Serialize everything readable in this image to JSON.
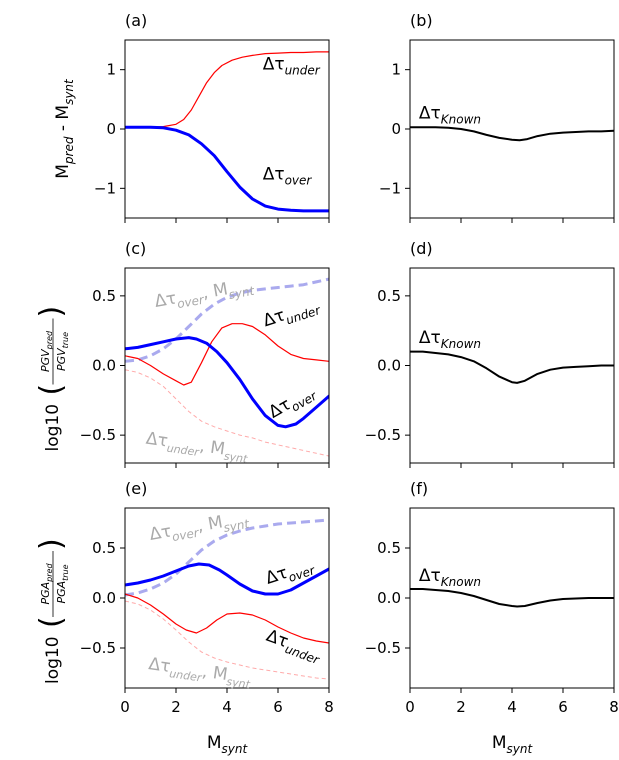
{
  "chart_data": [
    {
      "type": "line",
      "panel": "(a)",
      "ylabel": [
        "M",
        "pred",
        " - M",
        "synt"
      ],
      "xlim": [
        0,
        8
      ],
      "ylim": [
        -1.5,
        1.5
      ],
      "yticks": [
        1,
        0,
        -1
      ],
      "ytick_labels": [
        "1",
        "0",
        "−1"
      ],
      "xticks": [
        0,
        2,
        4,
        6,
        8
      ],
      "series": [
        {
          "name": "Δτunder",
          "color": "#ff0000",
          "width": 1.2,
          "dash": "",
          "label_color": "#000000",
          "x": [
            0,
            0.5,
            1,
            1.5,
            2,
            2.3,
            2.6,
            2.9,
            3.2,
            3.5,
            3.8,
            4.2,
            4.6,
            5,
            5.5,
            6,
            6.5,
            7,
            7.5,
            8
          ],
          "y": [
            0.03,
            0.03,
            0.03,
            0.04,
            0.08,
            0.16,
            0.32,
            0.55,
            0.78,
            0.95,
            1.07,
            1.16,
            1.21,
            1.24,
            1.27,
            1.28,
            1.29,
            1.29,
            1.3,
            1.3
          ]
        },
        {
          "name": "Δτover",
          "color": "#0000ff",
          "width": 3,
          "dash": "",
          "label_color": "#000000",
          "x": [
            0,
            0.5,
            1,
            1.5,
            2,
            2.5,
            3,
            3.5,
            4,
            4.5,
            5,
            5.5,
            6,
            6.5,
            7,
            7.5,
            8
          ],
          "y": [
            0.03,
            0.03,
            0.03,
            0.02,
            -0.02,
            -0.1,
            -0.25,
            -0.45,
            -0.72,
            -0.98,
            -1.18,
            -1.3,
            -1.35,
            -1.37,
            -1.38,
            -1.38,
            -1.38
          ]
        }
      ],
      "annotations": [
        {
          "text": "Δτ",
          "sub": "under",
          "x": 5.4,
          "y": 1.0,
          "color": "#000000",
          "rotate": 0,
          "size": 17
        },
        {
          "text": "Δτ",
          "sub": "over",
          "x": 5.4,
          "y": -0.85,
          "color": "#000000",
          "rotate": 0,
          "size": 17
        }
      ]
    },
    {
      "type": "line",
      "panel": "(b)",
      "xlim": [
        0,
        8
      ],
      "ylim": [
        -1.5,
        1.5
      ],
      "yticks": [
        1,
        0,
        -1
      ],
      "ytick_labels": [
        "1",
        "0",
        "−1"
      ],
      "xticks": [
        0,
        2,
        4,
        6,
        8
      ],
      "series": [
        {
          "name": "ΔτKnown",
          "color": "#000000",
          "width": 2,
          "dash": "",
          "x": [
            0,
            0.5,
            1,
            1.5,
            2,
            2.5,
            3,
            3.5,
            4,
            4.3,
            4.6,
            5,
            5.5,
            6,
            6.5,
            7,
            7.5,
            8
          ],
          "y": [
            0.03,
            0.03,
            0.03,
            0.02,
            0.0,
            -0.04,
            -0.1,
            -0.15,
            -0.18,
            -0.19,
            -0.17,
            -0.12,
            -0.08,
            -0.06,
            -0.05,
            -0.04,
            -0.04,
            -0.03
          ]
        }
      ],
      "annotations": [
        {
          "text": "Δτ",
          "sub": "Known",
          "x": 0.35,
          "y": 0.18,
          "color": "#000000",
          "rotate": 0,
          "size": 17
        }
      ]
    },
    {
      "type": "line",
      "panel": "(c)",
      "ylabel": [
        "log10",
        "PGV",
        "pred",
        "PGV",
        "true"
      ],
      "xlim": [
        0,
        8
      ],
      "ylim": [
        -0.7,
        0.7
      ],
      "yticks": [
        0.5,
        0.0,
        -0.5
      ],
      "ytick_labels": [
        "0.5",
        "0.0",
        "−0.5"
      ],
      "xticks": [
        0,
        2,
        4,
        6,
        8
      ],
      "series": [
        {
          "name": "Δτover, Msynt",
          "color": "#aaaaee",
          "width": 3,
          "dash": "9,5",
          "x": [
            0,
            0.5,
            1,
            1.5,
            2,
            2.5,
            3,
            3.5,
            4,
            4.5,
            5,
            5.5,
            6,
            6.5,
            7,
            7.5,
            8
          ],
          "y": [
            0.03,
            0.04,
            0.07,
            0.12,
            0.19,
            0.28,
            0.37,
            0.44,
            0.49,
            0.52,
            0.54,
            0.55,
            0.56,
            0.57,
            0.58,
            0.6,
            0.62
          ]
        },
        {
          "name": "Δτunder, Msynt",
          "color": "#ffaaaa",
          "width": 1,
          "dash": "4,3",
          "x": [
            0,
            0.5,
            1,
            1.5,
            2,
            2.5,
            3,
            3.5,
            4,
            4.5,
            5,
            5.5,
            6,
            6.5,
            7,
            7.5,
            8
          ],
          "y": [
            -0.03,
            -0.05,
            -0.09,
            -0.15,
            -0.24,
            -0.33,
            -0.4,
            -0.44,
            -0.47,
            -0.5,
            -0.52,
            -0.55,
            -0.57,
            -0.59,
            -0.61,
            -0.63,
            -0.65
          ]
        },
        {
          "name": "Δτunder",
          "color": "#ff0000",
          "width": 1.2,
          "dash": "",
          "x": [
            0,
            0.5,
            1,
            1.5,
            2,
            2.3,
            2.6,
            3,
            3.4,
            3.8,
            4.2,
            4.6,
            5,
            5.5,
            6,
            6.5,
            7,
            7.5,
            8
          ],
          "y": [
            0.07,
            0.05,
            0.0,
            -0.06,
            -0.11,
            -0.14,
            -0.12,
            0.02,
            0.17,
            0.27,
            0.3,
            0.3,
            0.28,
            0.22,
            0.14,
            0.08,
            0.05,
            0.04,
            0.03
          ]
        },
        {
          "name": "Δτover",
          "color": "#0000ff",
          "width": 3,
          "dash": "",
          "x": [
            0,
            0.5,
            1,
            1.5,
            2,
            2.5,
            2.8,
            3.2,
            3.6,
            4,
            4.5,
            5,
            5.5,
            6,
            6.3,
            6.7,
            7,
            7.5,
            8
          ],
          "y": [
            0.12,
            0.13,
            0.15,
            0.17,
            0.19,
            0.2,
            0.19,
            0.16,
            0.1,
            0.02,
            -0.1,
            -0.24,
            -0.36,
            -0.43,
            -0.44,
            -0.42,
            -0.38,
            -0.3,
            -0.22
          ]
        }
      ],
      "annotations": [
        {
          "text": "Δτ",
          "sub": "over",
          "text2": ", M",
          "sub2": "synt",
          "x": 1.2,
          "y": 0.42,
          "color": "#aaaaaa",
          "rotate": -10,
          "size": 17
        },
        {
          "text": "Δτ",
          "sub": "under",
          "x": 5.5,
          "y": 0.28,
          "color": "#000000",
          "rotate": -18,
          "size": 17
        },
        {
          "text": "Δτ",
          "sub": "over",
          "x": 5.8,
          "y": -0.38,
          "color": "#000000",
          "rotate": -30,
          "size": 17
        },
        {
          "text": "Δτ",
          "sub": "under",
          "text2": ", M",
          "sub2": "synt",
          "x": 0.8,
          "y": -0.56,
          "color": "#aaaaaa",
          "rotate": 8,
          "size": 15
        }
      ]
    },
    {
      "type": "line",
      "panel": "(d)",
      "xlim": [
        0,
        8
      ],
      "ylim": [
        -0.7,
        0.7
      ],
      "yticks": [
        0.5,
        0.0,
        -0.5
      ],
      "ytick_labels": [
        "0.5",
        "0.0",
        "−0.5"
      ],
      "xticks": [
        0,
        2,
        4,
        6,
        8
      ],
      "series": [
        {
          "name": "ΔτKnown",
          "color": "#000000",
          "width": 2,
          "dash": "",
          "x": [
            0,
            0.5,
            1,
            1.5,
            2,
            2.5,
            3,
            3.5,
            4,
            4.2,
            4.5,
            5,
            5.5,
            6,
            6.5,
            7,
            7.5,
            8
          ],
          "y": [
            0.1,
            0.1,
            0.09,
            0.08,
            0.06,
            0.03,
            -0.02,
            -0.08,
            -0.12,
            -0.125,
            -0.11,
            -0.06,
            -0.03,
            -0.015,
            -0.01,
            -0.005,
            0.0,
            0.0
          ]
        }
      ],
      "annotations": [
        {
          "text": "Δτ",
          "sub": "Known",
          "x": 0.35,
          "y": 0.16,
          "color": "#000000",
          "rotate": 0,
          "size": 17
        }
      ]
    },
    {
      "type": "line",
      "panel": "(e)",
      "ylabel": [
        "log10",
        "PGA",
        "pred",
        "PGA",
        "true"
      ],
      "xlim": [
        0,
        8
      ],
      "ylim": [
        -0.9,
        0.9
      ],
      "yticks": [
        0.5,
        0.0,
        -0.5
      ],
      "ytick_labels": [
        "0.5",
        "0.0",
        "−0.5"
      ],
      "xticks": [
        0,
        2,
        4,
        6,
        8
      ],
      "xlabel": [
        "M",
        "synt"
      ],
      "series": [
        {
          "name": "Δτover, Msynt",
          "color": "#aaaaee",
          "width": 3,
          "dash": "9,5",
          "x": [
            0,
            0.5,
            1,
            1.5,
            2,
            2.5,
            3,
            3.5,
            4,
            4.5,
            5,
            5.5,
            6,
            6.5,
            7,
            7.5,
            8
          ],
          "y": [
            0.03,
            0.05,
            0.09,
            0.15,
            0.24,
            0.36,
            0.48,
            0.57,
            0.63,
            0.67,
            0.7,
            0.72,
            0.74,
            0.75,
            0.76,
            0.77,
            0.78
          ]
        },
        {
          "name": "Δτunder, Msynt",
          "color": "#ffaaaa",
          "width": 1,
          "dash": "4,3",
          "x": [
            0,
            0.5,
            1,
            1.5,
            2,
            2.5,
            3,
            3.5,
            4,
            4.5,
            5,
            5.5,
            6,
            6.5,
            7,
            7.5,
            8
          ],
          "y": [
            -0.03,
            -0.06,
            -0.12,
            -0.21,
            -0.32,
            -0.44,
            -0.54,
            -0.6,
            -0.64,
            -0.67,
            -0.7,
            -0.72,
            -0.74,
            -0.76,
            -0.78,
            -0.8,
            -0.81
          ]
        },
        {
          "name": "Δτunder",
          "color": "#ff0000",
          "width": 1.2,
          "dash": "",
          "x": [
            0,
            0.5,
            1,
            1.5,
            2,
            2.4,
            2.8,
            3.2,
            3.6,
            4,
            4.5,
            5,
            5.5,
            6,
            6.5,
            7,
            7.5,
            8
          ],
          "y": [
            0.04,
            0.0,
            -0.07,
            -0.16,
            -0.26,
            -0.32,
            -0.35,
            -0.3,
            -0.22,
            -0.16,
            -0.15,
            -0.17,
            -0.22,
            -0.29,
            -0.35,
            -0.4,
            -0.43,
            -0.45
          ]
        },
        {
          "name": "Δτover",
          "color": "#0000ff",
          "width": 3,
          "dash": "",
          "x": [
            0,
            0.5,
            1,
            1.5,
            2,
            2.5,
            2.9,
            3.3,
            3.7,
            4,
            4.5,
            5,
            5.5,
            6,
            6.5,
            7,
            7.5,
            8
          ],
          "y": [
            0.13,
            0.15,
            0.18,
            0.22,
            0.27,
            0.32,
            0.34,
            0.33,
            0.28,
            0.23,
            0.14,
            0.07,
            0.04,
            0.04,
            0.08,
            0.15,
            0.22,
            0.29
          ]
        }
      ],
      "annotations": [
        {
          "text": "Δτ",
          "sub": "over",
          "text2": ", M",
          "sub2": "synt",
          "x": 1.0,
          "y": 0.58,
          "color": "#aaaaaa",
          "rotate": -10,
          "size": 17
        },
        {
          "text": "Δτ",
          "sub": "over",
          "x": 5.6,
          "y": 0.14,
          "color": "#000000",
          "rotate": -18,
          "size": 17
        },
        {
          "text": "Δτ",
          "sub": "under",
          "x": 5.5,
          "y": -0.42,
          "color": "#000000",
          "rotate": 20,
          "size": 17
        },
        {
          "text": "Δτ",
          "sub": "under",
          "text2": ", M",
          "sub2": "synt",
          "x": 0.9,
          "y": -0.71,
          "color": "#aaaaaa",
          "rotate": 8,
          "size": 15
        }
      ]
    },
    {
      "type": "line",
      "panel": "(f)",
      "xlim": [
        0,
        8
      ],
      "ylim": [
        -0.9,
        0.9
      ],
      "yticks": [
        0.5,
        0.0,
        -0.5
      ],
      "ytick_labels": [
        "0.5",
        "0.0",
        "−0.5"
      ],
      "xticks": [
        0,
        2,
        4,
        6,
        8
      ],
      "xlabel": [
        "M",
        "synt"
      ],
      "series": [
        {
          "name": "ΔτKnown",
          "color": "#000000",
          "width": 2,
          "dash": "",
          "x": [
            0,
            0.5,
            1,
            1.5,
            2,
            2.5,
            3,
            3.5,
            4,
            4.2,
            4.5,
            5,
            5.5,
            6,
            6.5,
            7,
            7.5,
            8
          ],
          "y": [
            0.09,
            0.09,
            0.08,
            0.07,
            0.05,
            0.02,
            -0.02,
            -0.06,
            -0.08,
            -0.085,
            -0.08,
            -0.05,
            -0.025,
            -0.01,
            -0.005,
            0.0,
            0.0,
            0.0
          ]
        }
      ],
      "annotations": [
        {
          "text": "Δτ",
          "sub": "Known",
          "x": 0.35,
          "y": 0.17,
          "color": "#000000",
          "rotate": 0,
          "size": 17
        }
      ]
    }
  ]
}
